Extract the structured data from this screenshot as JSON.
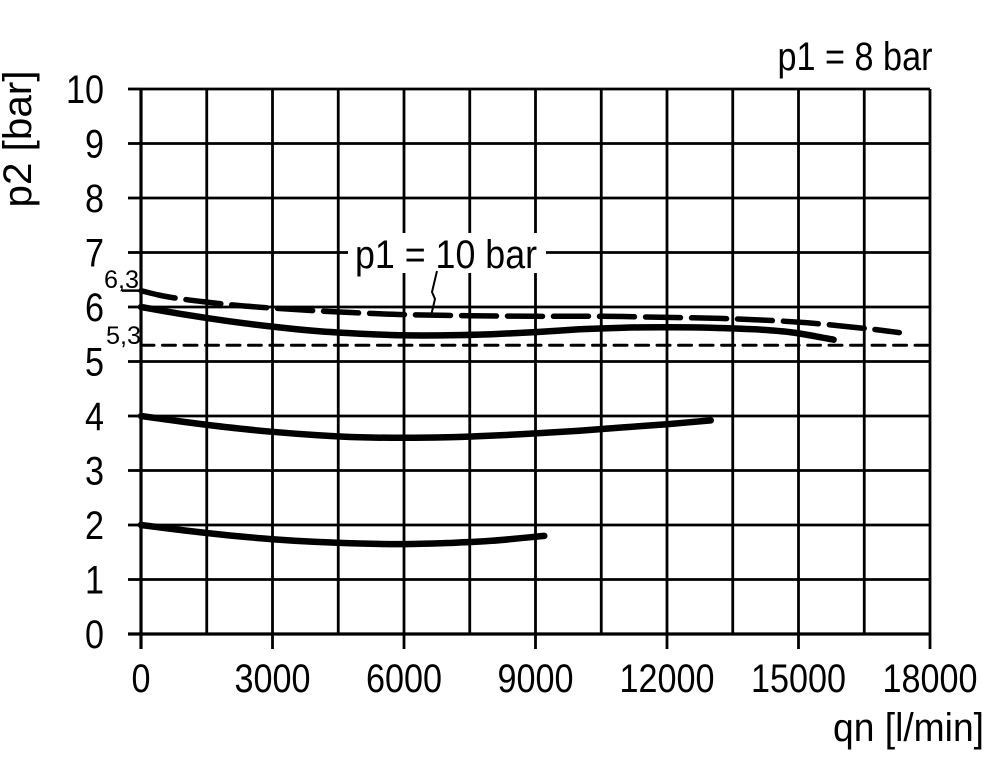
{
  "chart_data": {
    "type": "line",
    "title": "",
    "xlabel": "qn [l/min]",
    "ylabel": "p2 [bar]",
    "xlim": [
      0,
      18000
    ],
    "ylim": [
      0,
      10
    ],
    "grid": "on",
    "x_grid_step": 1500,
    "y_grid_step": 1,
    "line_color": "#000000",
    "background": "#ffffff",
    "x_ticks": [
      {
        "value": 0,
        "label": "0"
      },
      {
        "value": 3000,
        "label": "3000"
      },
      {
        "value": 6000,
        "label": "6000"
      },
      {
        "value": 9000,
        "label": "9000"
      },
      {
        "value": 12000,
        "label": "12000"
      },
      {
        "value": 15000,
        "label": "15000"
      },
      {
        "value": 18000,
        "label": "18000"
      }
    ],
    "y_ticks": [
      {
        "value": 0,
        "label": "0"
      },
      {
        "value": 1,
        "label": "1"
      },
      {
        "value": 2,
        "label": "2"
      },
      {
        "value": 3,
        "label": "3"
      },
      {
        "value": 4,
        "label": "4"
      },
      {
        "value": 5,
        "label": "5"
      },
      {
        "value": 6,
        "label": "6"
      },
      {
        "value": 7,
        "label": "7"
      },
      {
        "value": 8,
        "label": "8"
      },
      {
        "value": 9,
        "label": "9"
      },
      {
        "value": 10,
        "label": "10"
      }
    ],
    "annotations": {
      "top_right_label": "p1 = 8 bar",
      "curve_label": "p1 = 10 bar",
      "ref_upper": {
        "label": "6,3",
        "value": 6.3
      },
      "ref_lower": {
        "label": "5,3",
        "value": 5.3
      }
    },
    "series": [
      {
        "id": "p1-10bar-curve",
        "label": "p1 = 10 bar",
        "style": "long-dash",
        "points": [
          [
            0,
            6.3
          ],
          [
            400,
            6.22
          ],
          [
            900,
            6.15
          ],
          [
            1500,
            6.09
          ],
          [
            2200,
            6.03
          ],
          [
            3000,
            5.98
          ],
          [
            4000,
            5.93
          ],
          [
            5000,
            5.89
          ],
          [
            6000,
            5.86
          ],
          [
            7500,
            5.84
          ],
          [
            9000,
            5.83
          ],
          [
            10500,
            5.83
          ],
          [
            12000,
            5.81
          ],
          [
            13200,
            5.79
          ],
          [
            14200,
            5.76
          ],
          [
            15200,
            5.71
          ],
          [
            16000,
            5.65
          ],
          [
            16700,
            5.59
          ],
          [
            17300,
            5.53
          ]
        ]
      },
      {
        "id": "p1-8bar-outlet-6bar-curve",
        "label": "",
        "style": "solid",
        "points": [
          [
            0,
            6.0
          ],
          [
            1000,
            5.86
          ],
          [
            2000,
            5.74
          ],
          [
            3000,
            5.64
          ],
          [
            4000,
            5.56
          ],
          [
            5000,
            5.51
          ],
          [
            6000,
            5.48
          ],
          [
            7000,
            5.48
          ],
          [
            8000,
            5.5
          ],
          [
            9000,
            5.54
          ],
          [
            10000,
            5.59
          ],
          [
            11000,
            5.62
          ],
          [
            12000,
            5.63
          ],
          [
            13000,
            5.62
          ],
          [
            14000,
            5.59
          ],
          [
            14800,
            5.54
          ],
          [
            15400,
            5.46
          ],
          [
            15800,
            5.4
          ]
        ]
      },
      {
        "id": "outlet-4bar-curve",
        "label": "",
        "style": "solid",
        "points": [
          [
            0,
            4.0
          ],
          [
            1000,
            3.89
          ],
          [
            2000,
            3.79
          ],
          [
            3000,
            3.71
          ],
          [
            4000,
            3.65
          ],
          [
            5000,
            3.61
          ],
          [
            6000,
            3.6
          ],
          [
            7000,
            3.61
          ],
          [
            8000,
            3.64
          ],
          [
            9000,
            3.68
          ],
          [
            10000,
            3.73
          ],
          [
            11000,
            3.79
          ],
          [
            12000,
            3.85
          ],
          [
            13000,
            3.92
          ]
        ]
      },
      {
        "id": "outlet-2bar-curve",
        "label": "",
        "style": "solid",
        "points": [
          [
            0,
            2.0
          ],
          [
            1000,
            1.9
          ],
          [
            2000,
            1.81
          ],
          [
            3000,
            1.74
          ],
          [
            4000,
            1.69
          ],
          [
            5000,
            1.66
          ],
          [
            6000,
            1.65
          ],
          [
            7000,
            1.67
          ],
          [
            8000,
            1.71
          ],
          [
            9200,
            1.8
          ]
        ]
      },
      {
        "id": "ref-5-3-line",
        "label": "5,3",
        "style": "fine-dash",
        "points": [
          [
            0,
            5.3
          ],
          [
            18000,
            5.3
          ]
        ]
      }
    ]
  }
}
